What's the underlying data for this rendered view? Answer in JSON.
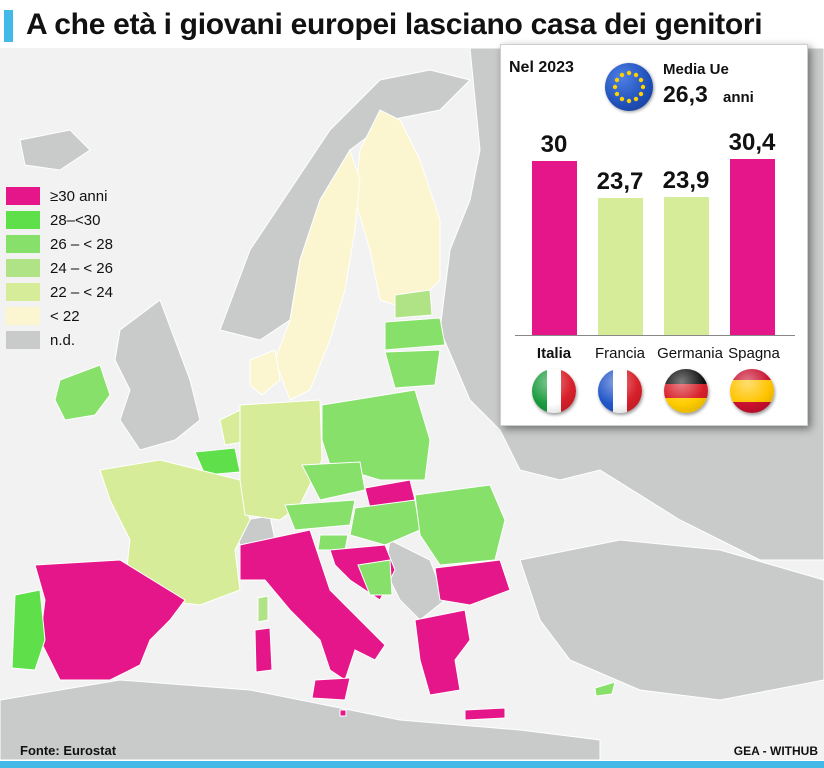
{
  "title": "A che età i giovani europei lasciano casa dei genitori",
  "source": "Fonte: Eurostat",
  "credit": "GEA - WITHUB",
  "colors": {
    "c30plus": "#e5168a",
    "c28_30": "#5fe04a",
    "c26_28": "#86e06a",
    "c24_26": "#afe386",
    "c22_24": "#d7ec98",
    "c_lt22": "#fbf6d0",
    "nd": "#c9cbcb",
    "accent": "#43b9e8"
  },
  "legend": [
    {
      "label": "≥30 anni",
      "color": "#e5168a"
    },
    {
      "label": "28–<30",
      "color": "#5fe04a"
    },
    {
      "label": "26 – < 28",
      "color": "#86e06a"
    },
    {
      "label": "24 – < 26",
      "color": "#afe386"
    },
    {
      "label": "22 – < 24",
      "color": "#d7ec98"
    },
    {
      "label": "< 22",
      "color": "#fbf6d0"
    },
    {
      "label": "n.d.",
      "color": "#c9cbcb"
    }
  ],
  "panel": {
    "year": "Nel 2023",
    "eu_label": "Media Ue",
    "eu_value": "26,3",
    "eu_unit": "anni",
    "eu_icon": "eu-flag-icon"
  },
  "chart_data": {
    "type": "bar",
    "title": "",
    "categories": [
      "Italia",
      "Francia",
      "Germania",
      "Spagna"
    ],
    "values": [
      30,
      23.7,
      23.9,
      30.4
    ],
    "value_labels": [
      "30",
      "23,7",
      "23,9",
      "30,4"
    ],
    "bar_colors": [
      "#e5168a",
      "#d7ec98",
      "#d7ec98",
      "#e5168a"
    ],
    "ylim": [
      0,
      30.4
    ]
  }
}
